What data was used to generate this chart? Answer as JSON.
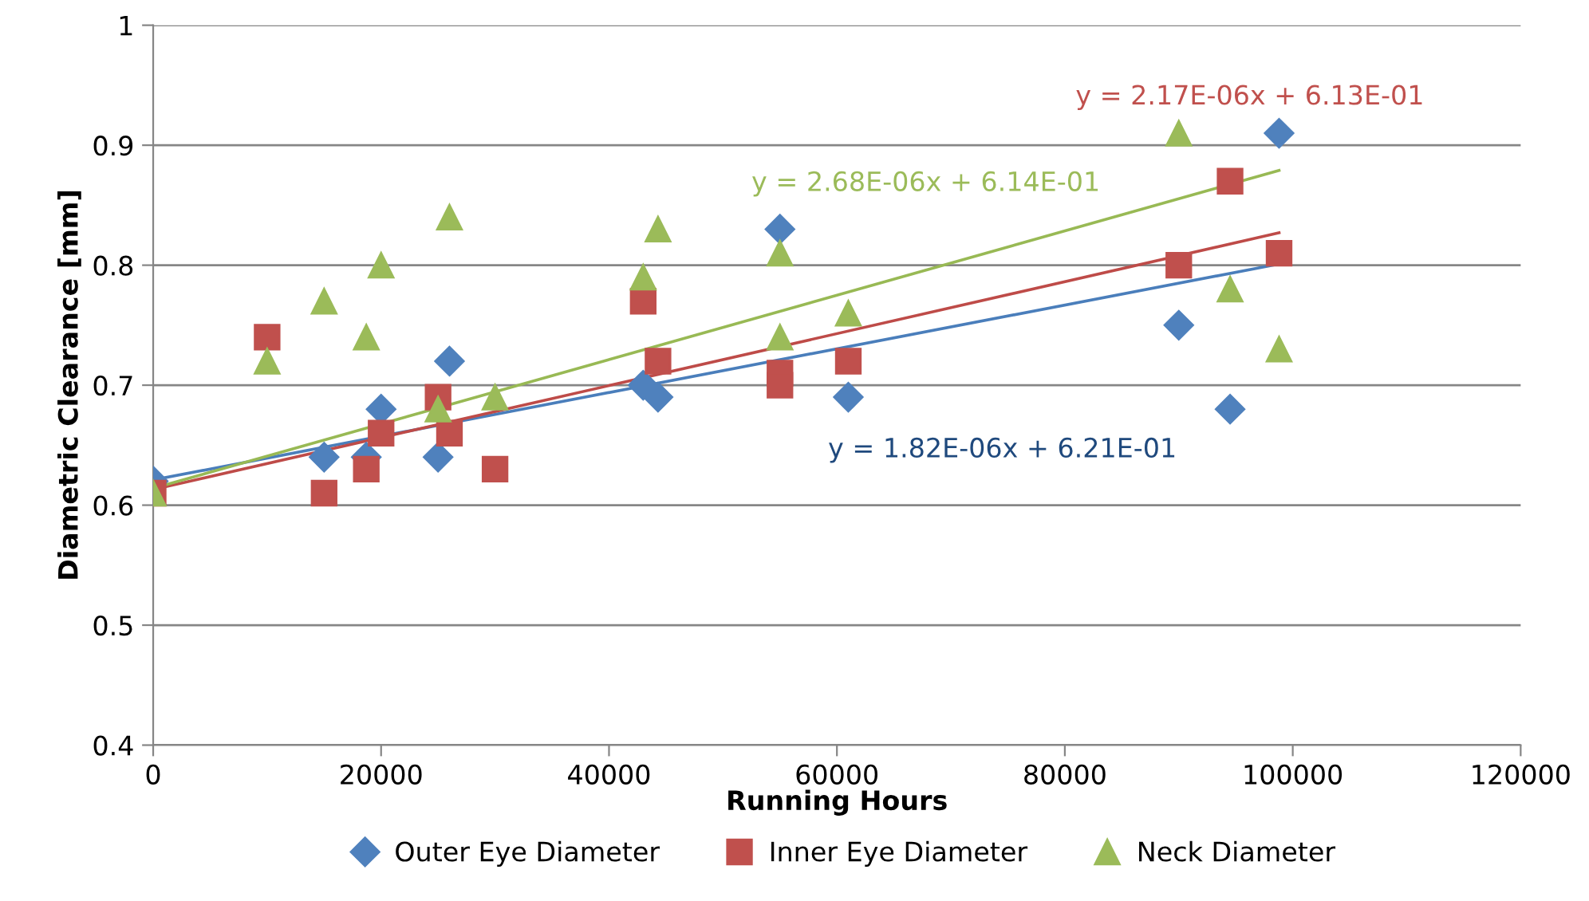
{
  "chart_data": {
    "type": "scatter",
    "xlabel": "Running Hours",
    "ylabel": "Diametric Clearance [mm]",
    "xlim": [
      0,
      120000
    ],
    "xticks": [
      0,
      20000,
      40000,
      60000,
      80000,
      100000,
      120000
    ],
    "ylim": [
      0.4,
      1
    ],
    "yticks": [
      0.4,
      0.5,
      0.6,
      0.7,
      0.8,
      0.9,
      1
    ],
    "grid": "y",
    "legend": "bottom",
    "series": [
      {
        "name": "Outer Eye Diameter",
        "color": "#4f81bd",
        "marker": "diamond",
        "x": [
          0,
          15000,
          18700,
          20000,
          25000,
          26000,
          43000,
          44300,
          55000,
          61000,
          90000,
          94500,
          98800
        ],
        "values": [
          0.62,
          0.64,
          0.64,
          0.68,
          0.64,
          0.72,
          0.7,
          0.69,
          0.83,
          0.69,
          0.75,
          0.68,
          0.91
        ]
      },
      {
        "name": "Inner Eye Diameter",
        "color": "#c0504d",
        "marker": "square",
        "x": [
          0,
          10000,
          15000,
          18700,
          20000,
          25000,
          26000,
          30000,
          43000,
          44300,
          55000,
          55000,
          61000,
          90000,
          94500,
          98800
        ],
        "values": [
          0.61,
          0.74,
          0.61,
          0.63,
          0.66,
          0.69,
          0.66,
          0.63,
          0.77,
          0.72,
          0.71,
          0.7,
          0.72,
          0.8,
          0.87,
          0.81
        ]
      },
      {
        "name": "Neck Diameter",
        "color": "#9bbb59",
        "marker": "triangle",
        "x": [
          0,
          10000,
          15000,
          18700,
          20000,
          25000,
          26000,
          30000,
          43000,
          44300,
          55000,
          55000,
          61000,
          90000,
          94500,
          98800
        ],
        "values": [
          0.61,
          0.72,
          0.77,
          0.74,
          0.8,
          0.68,
          0.84,
          0.69,
          0.79,
          0.83,
          0.81,
          0.74,
          0.76,
          0.91,
          0.78,
          0.73
        ]
      },
      {
        "type": "line",
        "color": "#4a7ebb",
        "x": [
          0,
          98800
        ],
        "values": [
          0.621,
          0.801
        ]
      },
      {
        "type": "line",
        "color": "#be4b48",
        "x": [
          0,
          98800
        ],
        "values": [
          0.613,
          0.827
        ]
      },
      {
        "type": "line",
        "color": "#98b954",
        "x": [
          0,
          98800
        ],
        "values": [
          0.614,
          0.879
        ]
      }
    ],
    "annotations": [
      "y = 1.82E-06x + 6.21E-01",
      "y = 2.17E-06x + 6.13E-01",
      "y = 2.68E-06x + 6.14E-01"
    ]
  }
}
